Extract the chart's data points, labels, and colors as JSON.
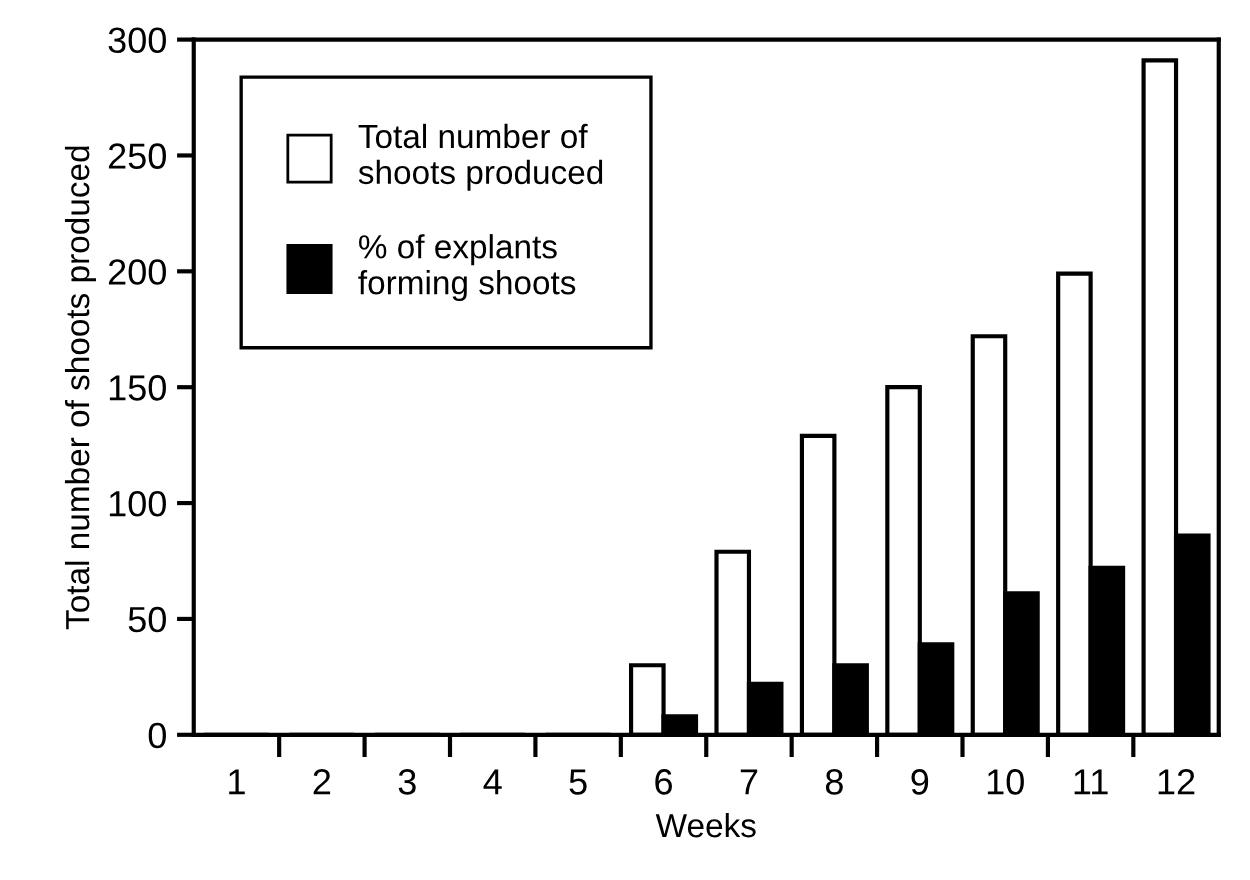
{
  "chart_data": {
    "type": "bar",
    "xlabel": "Weeks",
    "ylabel": "Total number of shoots produced",
    "categories": [
      "1",
      "2",
      "3",
      "4",
      "5",
      "6",
      "7",
      "8",
      "9",
      "10",
      "11",
      "12"
    ],
    "series": [
      {
        "name": "Total number of\nshoots produced",
        "color": "#ffffff",
        "values": [
          0,
          0,
          0,
          0,
          0,
          30,
          79,
          129,
          150,
          172,
          199,
          291
        ]
      },
      {
        "name": "% of explants\nforming shoots",
        "color": "#000000",
        "values": [
          0,
          0,
          0,
          0,
          0,
          8,
          22,
          30,
          39,
          61,
          72,
          86
        ]
      }
    ],
    "ylim": [
      0,
      300
    ],
    "yticks": [
      0,
      50,
      100,
      150,
      200,
      250,
      300
    ],
    "grid": false,
    "legend": "top left"
  }
}
